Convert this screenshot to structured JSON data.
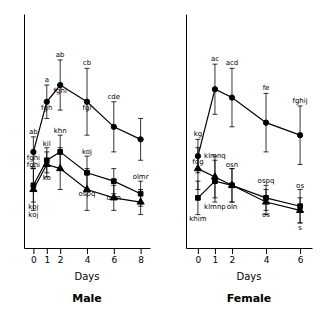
{
  "chart_data": [
    {
      "type": "line",
      "title": "Male",
      "x_label": "Days",
      "x": [
        0,
        1,
        2,
        4,
        6,
        8
      ],
      "xlim": [
        -0.7,
        8.7
      ],
      "xticks": [
        0,
        1,
        2,
        4,
        6,
        8
      ],
      "ylim": [
        0,
        28
      ],
      "yticks": [],
      "tick_labels": "x",
      "grid": false,
      "series": [
        {
          "marker": "circle",
          "line_style": "solid",
          "color": "black",
          "values": [
            11.5,
            17.5,
            19.5,
            17.5,
            14.5,
            13.0
          ],
          "error_up": [
            1.8,
            2.0,
            3.0,
            4.0,
            3.0,
            2.5
          ],
          "error_down": [
            1.8,
            2.0,
            3.0,
            4.0,
            3.0,
            2.5
          ],
          "labels_above": [
            "ab",
            "a",
            "ab",
            "cb",
            "cde",
            null
          ],
          "labels_below": [
            "fghi",
            "fgh",
            "fghi",
            "fgi",
            null,
            null
          ]
        },
        {
          "marker": "square",
          "line_style": "solid",
          "color": "black",
          "values": [
            7.5,
            10.5,
            11.5,
            9.0,
            8.0,
            6.5
          ],
          "error_up": [
            2.0,
            1.5,
            2.0,
            2.0,
            1.5,
            1.5
          ],
          "error_down": [
            2.0,
            1.5,
            2.0,
            2.0,
            1.5,
            1.5
          ],
          "labels_above": [
            null,
            "kil",
            "khn",
            "koj",
            null,
            "olmr"
          ],
          "labels_below": [
            "koj",
            "ko",
            null,
            "ospq",
            "osm",
            null
          ]
        },
        {
          "marker": "triangle",
          "line_style": "solid",
          "color": "black",
          "values": [
            7.0,
            10.0,
            9.5,
            7.0,
            6.0,
            5.5
          ],
          "error_up": [
            2.5,
            1.5,
            2.5,
            2.5,
            1.5,
            1.5
          ],
          "error_down": [
            2.5,
            1.5,
            2.5,
            2.5,
            1.5,
            1.5
          ],
          "labels_above": [
            "fghi",
            null,
            null,
            null,
            null,
            null
          ],
          "labels_below": [
            "koj",
            null,
            null,
            null,
            null,
            null
          ]
        }
      ]
    },
    {
      "type": "line",
      "title": "Female",
      "x_label": "Days",
      "x": [
        0,
        1,
        2,
        4,
        6
      ],
      "xlim": [
        -0.7,
        6.7
      ],
      "xticks": [
        0,
        1,
        2,
        4,
        6
      ],
      "ylim": [
        0,
        28
      ],
      "yticks": [],
      "tick_labels": "x",
      "grid": false,
      "series": [
        {
          "marker": "circle",
          "line_style": "solid",
          "color": "black",
          "values": [
            11.0,
            19.0,
            18.0,
            15.0,
            13.5
          ],
          "error_up": [
            2.0,
            3.0,
            3.5,
            3.5,
            3.5
          ],
          "error_down": [
            2.0,
            3.0,
            3.5,
            3.5,
            3.5
          ],
          "labels_above": [
            "kg",
            "ac",
            "acd",
            "fe",
            "fghij"
          ],
          "labels_below": [
            "fdg",
            null,
            null,
            null,
            null
          ]
        },
        {
          "marker": "square",
          "line_style": "solid",
          "color": "black",
          "values": [
            6.0,
            8.0,
            7.5,
            6.0,
            5.0
          ],
          "error_up": [
            2.0,
            2.5,
            2.0,
            1.5,
            2.0
          ],
          "error_down": [
            2.0,
            2.5,
            2.0,
            1.5,
            2.0
          ],
          "labels_above": [
            null,
            "klmnq",
            "osn",
            "ospq",
            "os"
          ],
          "labels_below": [
            "khim",
            "klmnp",
            "oln",
            "os",
            "s"
          ]
        },
        {
          "marker": "triangle",
          "line_style": "solid",
          "color": "black",
          "values": [
            9.5,
            8.5,
            7.5,
            5.5,
            4.5
          ],
          "error_up": [
            2.5,
            2.5,
            2.0,
            1.5,
            1.5
          ],
          "error_down": [
            2.5,
            2.5,
            2.0,
            1.5,
            1.5
          ]
        }
      ]
    }
  ]
}
